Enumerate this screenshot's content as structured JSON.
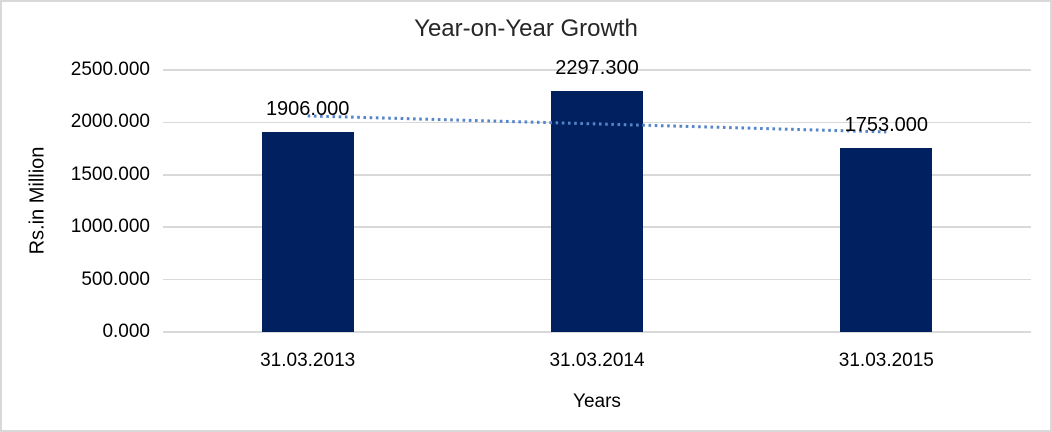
{
  "chart_data": {
    "type": "bar",
    "title": "Year-on-Year Growth",
    "xlabel": "Years",
    "ylabel": "Rs.in Million",
    "categories": [
      "31.03.2013",
      "31.03.2014",
      "31.03.2015"
    ],
    "values": [
      1906.0,
      2297.3,
      1753.0
    ],
    "value_labels": [
      "1906.000",
      "2297.300",
      "1753.000"
    ],
    "ylim": [
      0,
      2500
    ],
    "ytick_interval": 500,
    "ytick_labels": [
      "0.000",
      "500.000",
      "1000.000",
      "1500.000",
      "2000.000",
      "2500.000"
    ],
    "grid": true,
    "legend": "none",
    "bar_color": "#002060",
    "gridline_color": "#d9d9d9",
    "frame_border_color": "#d9d9d9",
    "text_color": "#000000",
    "title_color": "#262626",
    "trendline": {
      "type": "linear",
      "style": "dotted",
      "color": "#5585C8",
      "start_value": 2062,
      "end_value": 1909
    }
  }
}
